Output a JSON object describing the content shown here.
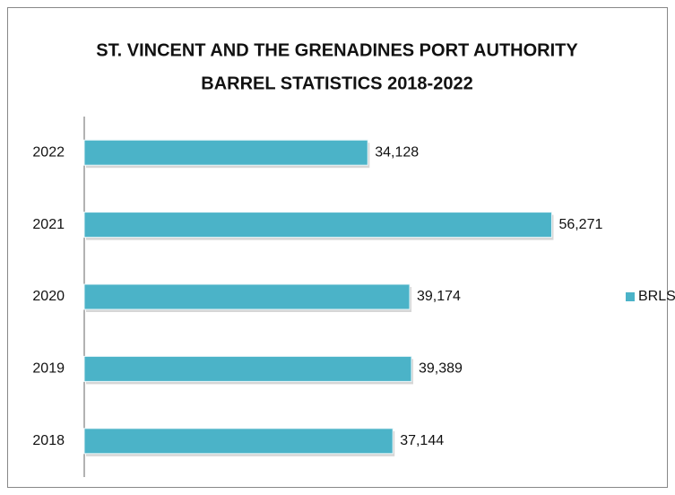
{
  "chart_data": {
    "type": "hbar",
    "title": [
      "ST. VINCENT AND THE GRENADINES PORT AUTHORITY",
      "BARREL STATISTICS 2018-2022"
    ],
    "categories": [
      "2022",
      "2021",
      "2020",
      "2019",
      "2018"
    ],
    "series": [
      {
        "name": "BRLS",
        "color": "#4bb3c8",
        "values": [
          34128,
          56271,
          39174,
          39389,
          37144
        ],
        "value_labels": [
          "34,128",
          "56,271",
          "39,174",
          "39,389",
          "37,144"
        ]
      }
    ],
    "xlim": [
      0,
      60000
    ],
    "legend": "right"
  }
}
